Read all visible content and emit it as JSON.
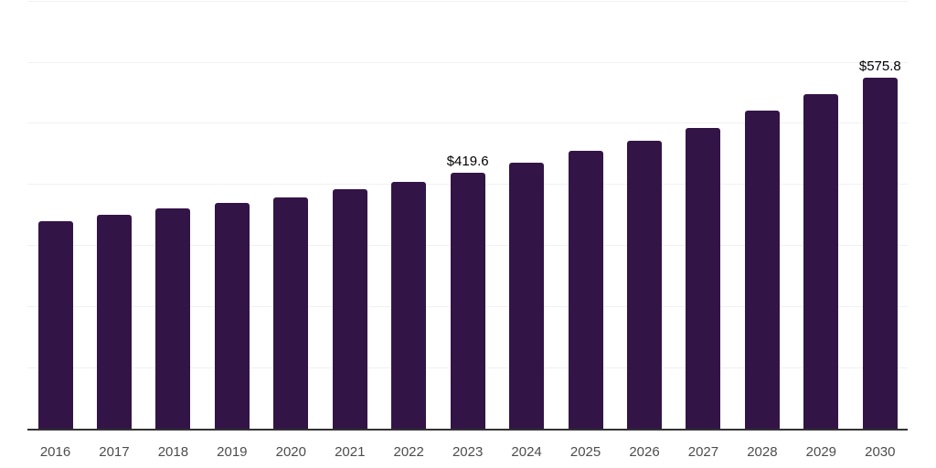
{
  "page": {
    "background_color": "#ffffff"
  },
  "chart_data": {
    "type": "bar",
    "title": "",
    "xlabel": "",
    "ylabel": "",
    "categories": [
      "2016",
      "2017",
      "2018",
      "2019",
      "2020",
      "2021",
      "2022",
      "2023",
      "2024",
      "2025",
      "2026",
      "2027",
      "2028",
      "2029",
      "2030"
    ],
    "values": [
      341,
      352,
      362,
      371,
      380,
      393,
      405,
      419.6,
      436,
      456,
      473,
      494,
      521,
      548,
      575.8
    ],
    "data_labels": [
      {
        "category_index": 7,
        "text": "$419.6"
      },
      {
        "category_index": 14,
        "text": "$575.8"
      }
    ],
    "ylim": [
      0,
      700
    ],
    "gridline_interval": 100,
    "y_axis_tick_labels_visible": false,
    "grid_on": true,
    "legend": "none",
    "bar_color": "#331447",
    "grid_color": "#f1f1f1",
    "axis_line_color": "#333333",
    "tick_label_color": "#4d4d4d",
    "data_label_color": "#000000"
  }
}
